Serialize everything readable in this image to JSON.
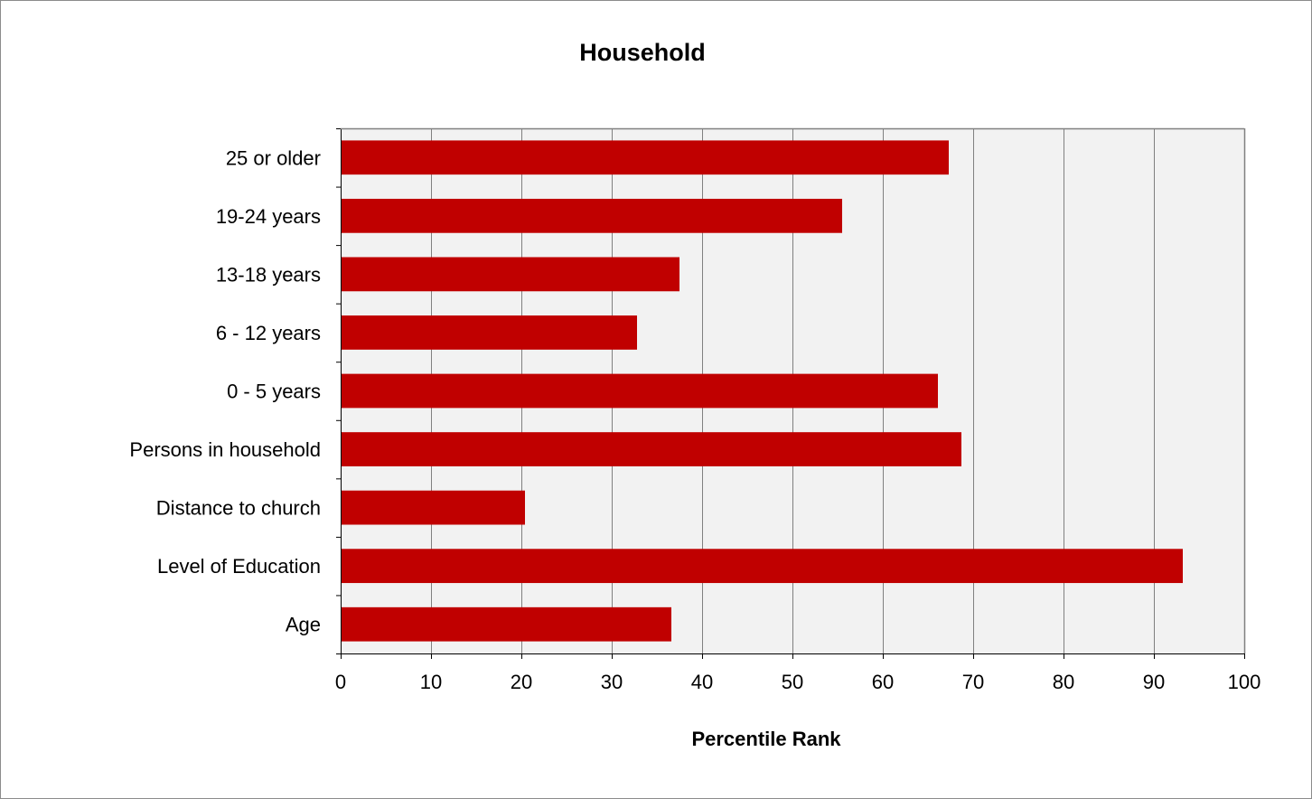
{
  "chart_data": {
    "type": "bar",
    "orientation": "horizontal",
    "title": "Household",
    "xlabel": "Percentile Rank",
    "ylabel": "",
    "categories": [
      "Age",
      "Level of Education",
      "Distance to church",
      "Persons in household",
      "0 - 5 years",
      "6 - 12 years",
      "13-18 years",
      "19-24 years",
      "25 or older"
    ],
    "values": [
      36.6,
      93.2,
      20.4,
      68.7,
      66.1,
      32.8,
      37.5,
      55.5,
      67.3
    ],
    "xlim": [
      0,
      100
    ],
    "x_ticks": [
      "0",
      "10",
      "20",
      "30",
      "40",
      "50",
      "60",
      "70",
      "80",
      "90",
      "100"
    ],
    "grid": "vertical",
    "legend": "none",
    "colors": {
      "bar": "#C00000",
      "plot_background": "#F2F2F2",
      "gridline": "#808080",
      "frame": "#808080"
    }
  }
}
